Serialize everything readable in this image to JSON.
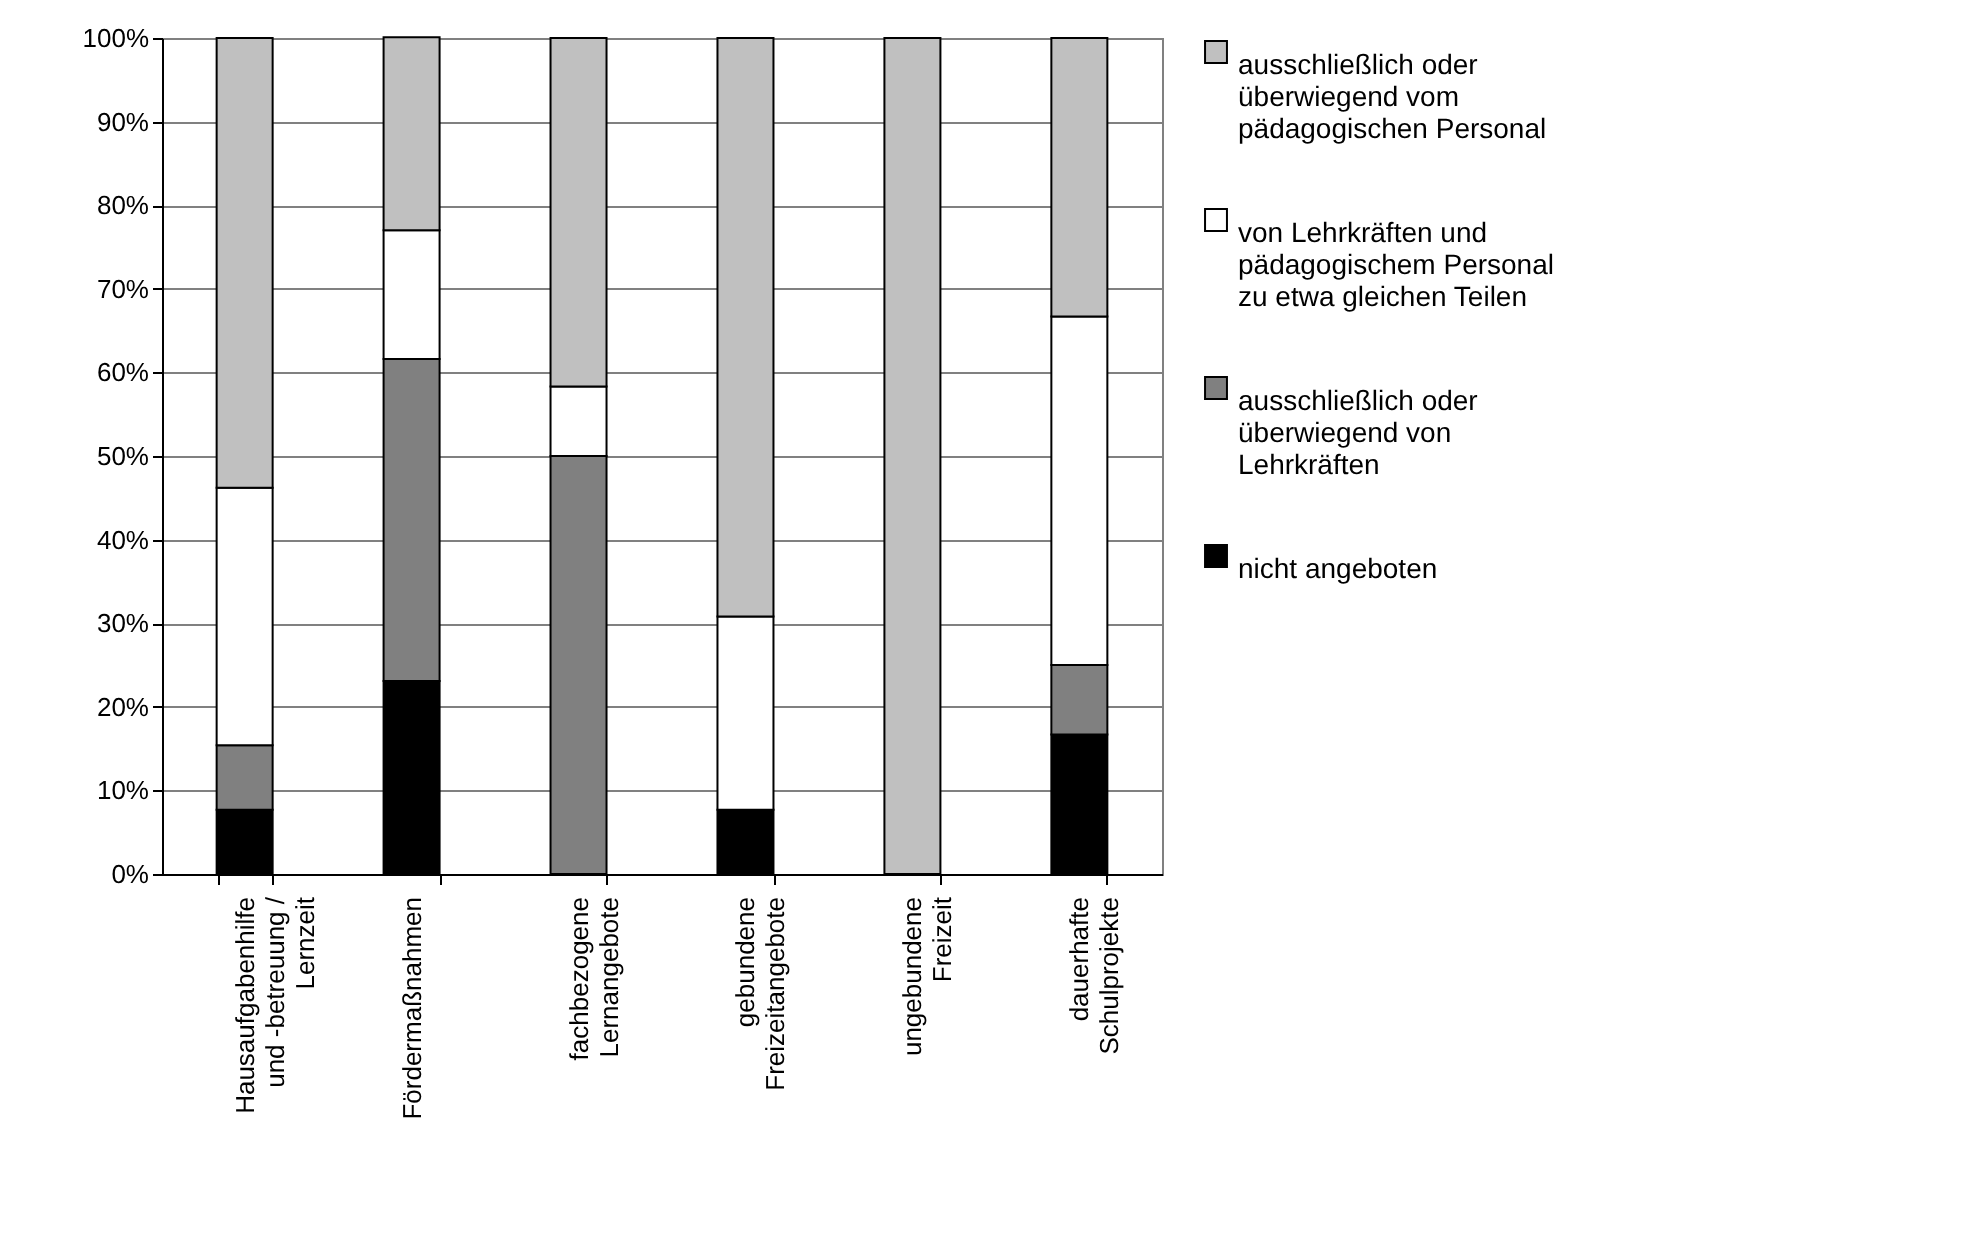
{
  "chart_data": {
    "type": "bar",
    "stacked": true,
    "categories": [
      "Hausaufgabenhilfe und -betreuung / Lernzeit",
      "Fördermaßnahmen",
      "fachbezogene Lernangebote",
      "gebundene Freizeitangebote",
      "ungebundene Freizeit",
      "dauerhafte Schulprojekte"
    ],
    "series": [
      {
        "name": "nicht angeboten",
        "color": "#000000",
        "values": [
          7.7,
          23.1,
          0,
          7.7,
          0,
          16.7
        ]
      },
      {
        "name": "ausschließlich oder überwiegend von Lehrkräften",
        "color": "#808080",
        "values": [
          7.7,
          38.5,
          50,
          0,
          0,
          8.3
        ]
      },
      {
        "name": "von Lehrkräften und pädagogischem Personal zu etwa gleichen Teilen",
        "color": "#ffffff",
        "values": [
          30.8,
          15.4,
          8.3,
          23.1,
          0,
          41.7
        ]
      },
      {
        "name": "ausschließlich oder überwiegend vom pädagogischen Personal",
        "color": "#c0c0c0",
        "values": [
          53.8,
          23.1,
          41.7,
          69.2,
          100,
          33.3
        ]
      }
    ],
    "ylim": [
      0,
      100
    ],
    "yticks": [
      {
        "value": 0,
        "label": "0%"
      },
      {
        "value": 10,
        "label": "10%"
      },
      {
        "value": 20,
        "label": "20%"
      },
      {
        "value": 30,
        "label": "30%"
      },
      {
        "value": 40,
        "label": "40%"
      },
      {
        "value": 50,
        "label": "50%"
      },
      {
        "value": 60,
        "label": "60%"
      },
      {
        "value": 70,
        "label": "70%"
      },
      {
        "value": 80,
        "label": "80%"
      },
      {
        "value": 90,
        "label": "90%"
      },
      {
        "value": 100,
        "label": "100%"
      }
    ],
    "grid": "y",
    "legend": "right"
  }
}
